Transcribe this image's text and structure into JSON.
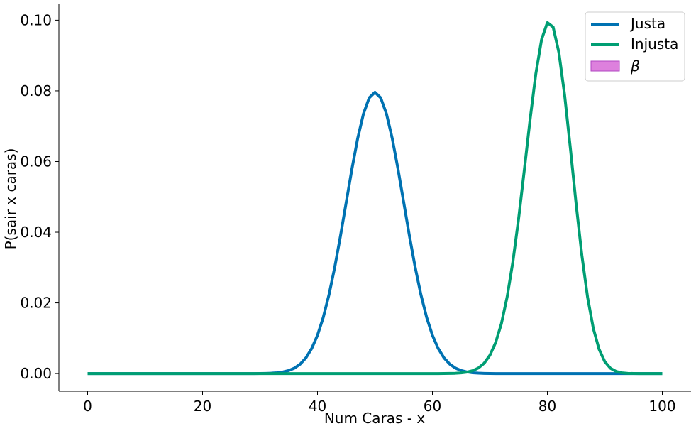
{
  "chart_data": {
    "type": "line",
    "title": "",
    "xlabel": "Num Caras - x",
    "ylabel": "P(sair x caras)",
    "xlim": [
      -5,
      105
    ],
    "ylim": [
      -0.005,
      0.1045
    ],
    "xticks": [
      0,
      20,
      40,
      60,
      80,
      100
    ],
    "xtick_labels": [
      "0",
      "20",
      "40",
      "60",
      "80",
      "100"
    ],
    "yticks": [
      0.0,
      0.02,
      0.04,
      0.06,
      0.08,
      0.1
    ],
    "ytick_labels": [
      "0.00",
      "0.02",
      "0.04",
      "0.06",
      "0.08",
      "0.10"
    ],
    "grid": false,
    "legend_position": "top-right",
    "n_trials": 100,
    "series": [
      {
        "name": "Justa",
        "kind": "line",
        "p": 0.5,
        "color": "#0072b2"
      },
      {
        "name": "Injusta",
        "kind": "line",
        "p": 0.8,
        "color": "#009e73"
      },
      {
        "name": "β",
        "kind": "area",
        "color": "#dd80dd",
        "edge_color": "#b146c2"
      }
    ]
  }
}
